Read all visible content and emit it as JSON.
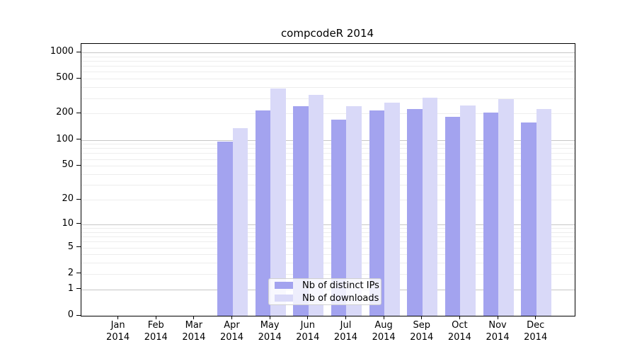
{
  "chart_data": {
    "type": "bar",
    "title": "compcodeR 2014",
    "categories": [
      "Jan 2014",
      "Feb 2014",
      "Mar 2014",
      "Apr 2014",
      "May 2014",
      "Jun 2014",
      "Jul 2014",
      "Aug 2014",
      "Sep 2014",
      "Oct 2014",
      "Nov 2014",
      "Dec 2014"
    ],
    "series": [
      {
        "name": "Nb of distinct IPs",
        "color": "#a3a3ef",
        "values": [
          0,
          0,
          0,
          95,
          217,
          242,
          170,
          217,
          224,
          185,
          206,
          159
        ]
      },
      {
        "name": "Nb of downloads",
        "color": "#d9d9f8",
        "values": [
          0,
          0,
          0,
          135,
          388,
          328,
          241,
          266,
          305,
          246,
          292,
          226
        ]
      }
    ],
    "y_scale": "log1p",
    "y_tick_labels": [
      0,
      1,
      2,
      5,
      10,
      20,
      50,
      100,
      200,
      500,
      1000
    ],
    "y_major_gridlines": [
      1,
      10,
      100,
      1000
    ],
    "y_minor_gridlines": [
      2,
      3,
      4,
      5,
      6,
      7,
      8,
      9,
      20,
      30,
      40,
      50,
      60,
      70,
      80,
      90,
      200,
      300,
      400,
      500,
      600,
      700,
      800,
      900
    ],
    "ylim": [
      0,
      1250
    ],
    "grid": "on",
    "legend_position": "lower center",
    "colors": {
      "bar_ips": "#a3a3ef",
      "bar_downloads": "#d9d9f8",
      "grid_major": "#c6c6c6",
      "grid_minor": "#ededed",
      "axis": "#000000"
    }
  }
}
